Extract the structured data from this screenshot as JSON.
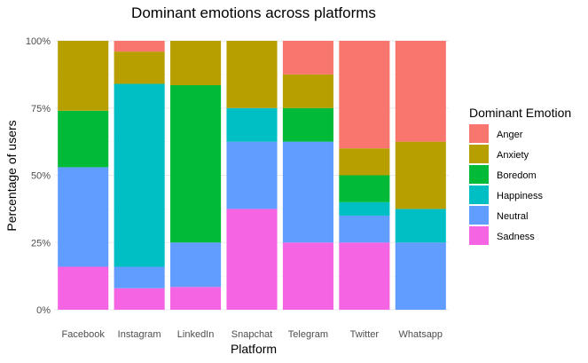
{
  "chart_data": {
    "type": "bar",
    "stacked": "percent",
    "title": "Dominant emotions across platforms",
    "xlabel": "Platform",
    "ylabel": "Percentage of users",
    "ylim": [
      0,
      1
    ],
    "yticks": [
      "0%",
      "25%",
      "50%",
      "75%",
      "100%"
    ],
    "categories": [
      "Facebook",
      "Instagram",
      "LinkedIn",
      "Snapchat",
      "Telegram",
      "Twitter",
      "Whatsapp"
    ],
    "legend": {
      "title": "Dominant Emotion",
      "position": "right"
    },
    "grid": true,
    "series": [
      {
        "name": "Anger",
        "color": "#F8766D",
        "values": [
          0.0,
          0.04,
          0.0,
          0.0,
          0.125,
          0.4,
          0.375
        ]
      },
      {
        "name": "Anxiety",
        "color": "#B79F00",
        "values": [
          0.26,
          0.12,
          0.165,
          0.25,
          0.125,
          0.1,
          0.25
        ]
      },
      {
        "name": "Boredom",
        "color": "#00BA38",
        "values": [
          0.21,
          0.0,
          0.585,
          0.0,
          0.125,
          0.1,
          0.0
        ]
      },
      {
        "name": "Happiness",
        "color": "#00BFC4",
        "values": [
          0.0,
          0.68,
          0.0,
          0.125,
          0.0,
          0.05,
          0.125
        ]
      },
      {
        "name": "Neutral",
        "color": "#619CFF",
        "values": [
          0.37,
          0.08,
          0.165,
          0.25,
          0.375,
          0.1,
          0.25
        ]
      },
      {
        "name": "Sadness",
        "color": "#F564E3",
        "values": [
          0.16,
          0.08,
          0.085,
          0.375,
          0.25,
          0.25,
          0.0
        ]
      }
    ]
  }
}
